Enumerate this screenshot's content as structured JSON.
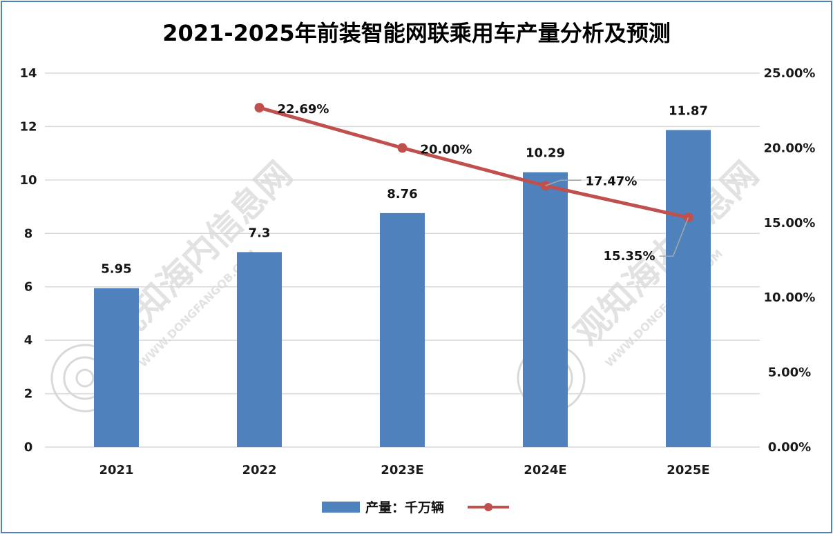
{
  "chart_data": {
    "type": "bar",
    "title": "2021-2025年前装智能网联乘用车产量分析及预测",
    "categories": [
      "2021",
      "2022",
      "2023E",
      "2024E",
      "2025E"
    ],
    "series": [
      {
        "name": "产量：千万辆",
        "kind": "bar",
        "axis": "left",
        "color": "#4f81bd",
        "values": [
          5.95,
          7.3,
          8.76,
          10.29,
          11.87
        ],
        "labels": [
          "5.95",
          "7.3",
          "8.76",
          "10.29",
          "11.87"
        ]
      },
      {
        "name": "",
        "kind": "line",
        "axis": "right",
        "color": "#c0504d",
        "values": [
          null,
          22.69,
          20.0,
          17.47,
          15.35
        ],
        "labels": [
          "",
          "22.69%",
          "20.00%",
          "17.47%",
          "15.35%"
        ]
      }
    ],
    "y_left": {
      "min": 0,
      "max": 14,
      "step": 2,
      "ticks": [
        "0",
        "2",
        "4",
        "6",
        "8",
        "10",
        "12",
        "14"
      ]
    },
    "y_right": {
      "min": 0,
      "max": 25,
      "step": 5,
      "ticks": [
        "0.00%",
        "5.00%",
        "10.00%",
        "15.00%",
        "20.00%",
        "25.00%"
      ]
    },
    "grid": true,
    "legend": "bottom",
    "watermark": {
      "text": "观知海内信息网",
      "subtext": "WWW.DONGFANGQB.COM"
    }
  }
}
